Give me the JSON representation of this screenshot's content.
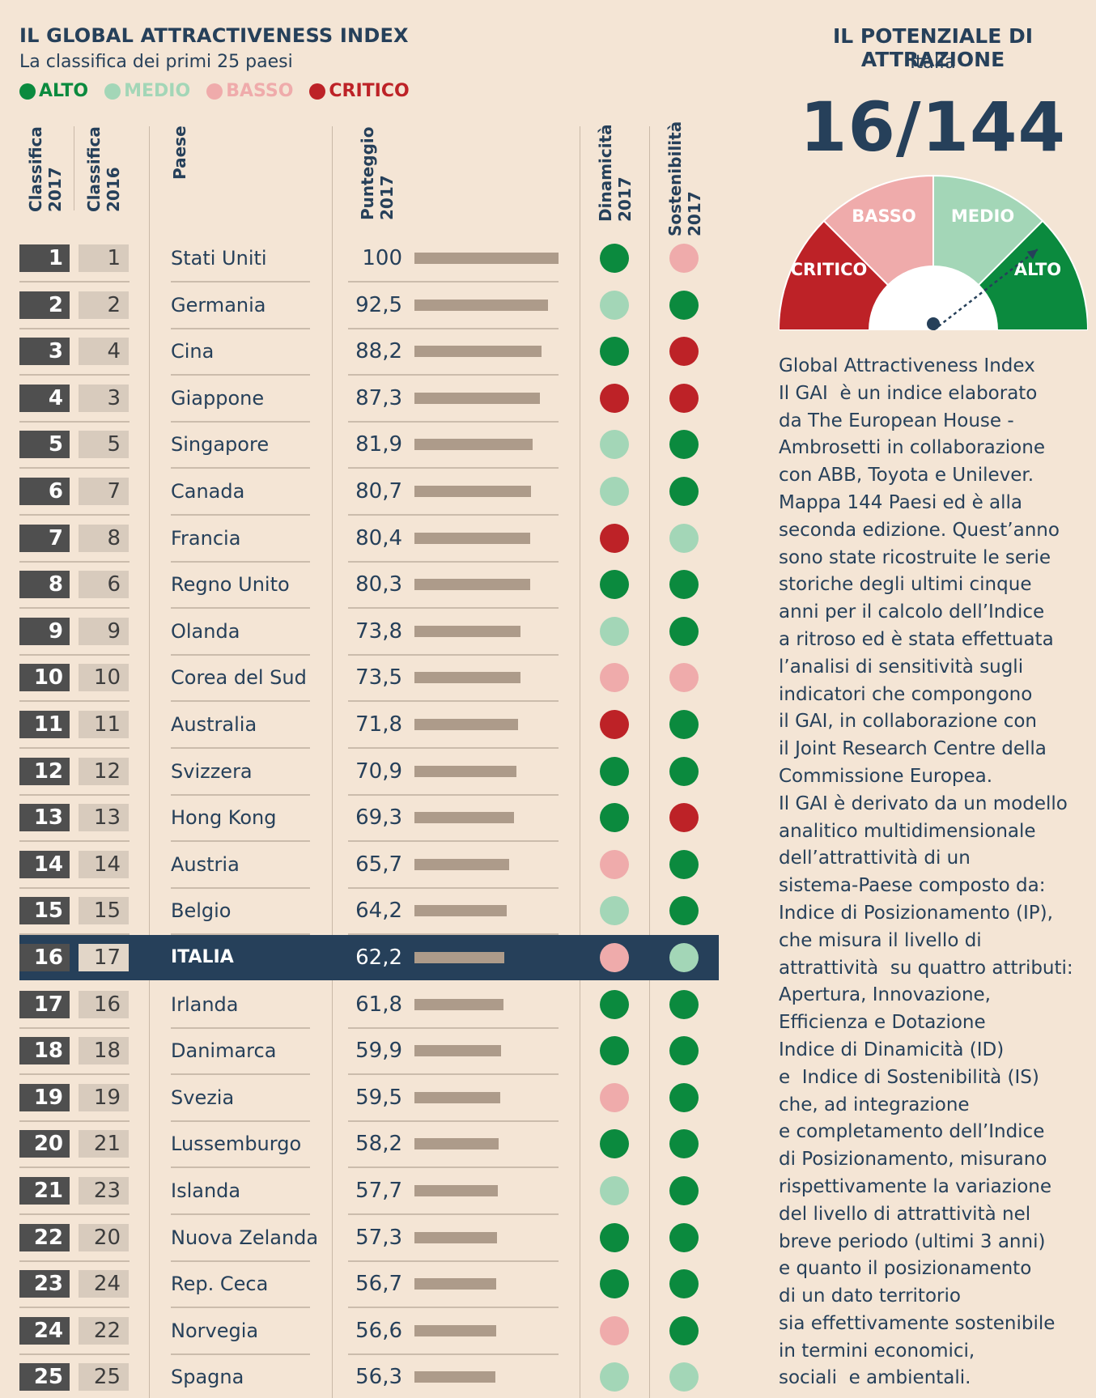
{
  "header": {
    "title": "IL GLOBAL ATTRACTIVENESS INDEX",
    "subtitle": "La classifica dei primi 25 paesi"
  },
  "legend": [
    {
      "label": "ALTO",
      "color": "#0b8a3e"
    },
    {
      "label": "MEDIO",
      "color": "#a3d6b7"
    },
    {
      "label": "BASSO",
      "color": "#efabab"
    },
    {
      "label": "CRITICO",
      "color": "#bd2227"
    }
  ],
  "columns": {
    "rank2017": "Classifica\n2017",
    "rank2016": "Classifica\n2016",
    "country": "Paese",
    "score": "Punteggio\n2017",
    "dynamics": "Dinamicità\n2017",
    "sustainability": "Sostenibilità\n2017"
  },
  "chart_data": {
    "type": "table",
    "title": "IL GLOBAL ATTRACTIVENESS INDEX",
    "subtitle": "La classifica dei primi 25 paesi",
    "bar_max": 100,
    "highlight_rank": 16,
    "rows": [
      {
        "rank2017": 1,
        "rank2016": 1,
        "country": "Stati Uniti",
        "score": "100",
        "value": 100,
        "dyn": "ALTO",
        "sus": "BASSO"
      },
      {
        "rank2017": 2,
        "rank2016": 2,
        "country": "Germania",
        "score": "92,5",
        "value": 92.5,
        "dyn": "MEDIO",
        "sus": "ALTO"
      },
      {
        "rank2017": 3,
        "rank2016": 4,
        "country": "Cina",
        "score": "88,2",
        "value": 88.2,
        "dyn": "ALTO",
        "sus": "CRITICO"
      },
      {
        "rank2017": 4,
        "rank2016": 3,
        "country": "Giappone",
        "score": "87,3",
        "value": 87.3,
        "dyn": "CRITICO",
        "sus": "CRITICO"
      },
      {
        "rank2017": 5,
        "rank2016": 5,
        "country": "Singapore",
        "score": "81,9",
        "value": 81.9,
        "dyn": "MEDIO",
        "sus": "ALTO"
      },
      {
        "rank2017": 6,
        "rank2016": 7,
        "country": "Canada",
        "score": "80,7",
        "value": 80.7,
        "dyn": "MEDIO",
        "sus": "ALTO"
      },
      {
        "rank2017": 7,
        "rank2016": 8,
        "country": "Francia",
        "score": "80,4",
        "value": 80.4,
        "dyn": "CRITICO",
        "sus": "MEDIO"
      },
      {
        "rank2017": 8,
        "rank2016": 6,
        "country": "Regno Unito",
        "score": "80,3",
        "value": 80.3,
        "dyn": "ALTO",
        "sus": "ALTO"
      },
      {
        "rank2017": 9,
        "rank2016": 9,
        "country": "Olanda",
        "score": "73,8",
        "value": 73.8,
        "dyn": "MEDIO",
        "sus": "ALTO"
      },
      {
        "rank2017": 10,
        "rank2016": 10,
        "country": "Corea del Sud",
        "score": "73,5",
        "value": 73.5,
        "dyn": "BASSO",
        "sus": "BASSO"
      },
      {
        "rank2017": 11,
        "rank2016": 11,
        "country": "Australia",
        "score": "71,8",
        "value": 71.8,
        "dyn": "CRITICO",
        "sus": "ALTO"
      },
      {
        "rank2017": 12,
        "rank2016": 12,
        "country": "Svizzera",
        "score": "70,9",
        "value": 70.9,
        "dyn": "ALTO",
        "sus": "ALTO"
      },
      {
        "rank2017": 13,
        "rank2016": 13,
        "country": "Hong Kong",
        "score": "69,3",
        "value": 69.3,
        "dyn": "ALTO",
        "sus": "CRITICO"
      },
      {
        "rank2017": 14,
        "rank2016": 14,
        "country": "Austria",
        "score": "65,7",
        "value": 65.7,
        "dyn": "BASSO",
        "sus": "ALTO"
      },
      {
        "rank2017": 15,
        "rank2016": 15,
        "country": "Belgio",
        "score": "64,2",
        "value": 64.2,
        "dyn": "MEDIO",
        "sus": "ALTO"
      },
      {
        "rank2017": 16,
        "rank2016": 17,
        "country": "ITALIA",
        "score": "62,2",
        "value": 62.2,
        "dyn": "BASSO",
        "sus": "MEDIO"
      },
      {
        "rank2017": 17,
        "rank2016": 16,
        "country": "Irlanda",
        "score": "61,8",
        "value": 61.8,
        "dyn": "ALTO",
        "sus": "ALTO"
      },
      {
        "rank2017": 18,
        "rank2016": 18,
        "country": "Danimarca",
        "score": "59,9",
        "value": 59.9,
        "dyn": "ALTO",
        "sus": "ALTO"
      },
      {
        "rank2017": 19,
        "rank2016": 19,
        "country": "Svezia",
        "score": "59,5",
        "value": 59.5,
        "dyn": "BASSO",
        "sus": "ALTO"
      },
      {
        "rank2017": 20,
        "rank2016": 21,
        "country": "Lussemburgo",
        "score": "58,2",
        "value": 58.2,
        "dyn": "ALTO",
        "sus": "ALTO"
      },
      {
        "rank2017": 21,
        "rank2016": 23,
        "country": "Islanda",
        "score": "57,7",
        "value": 57.7,
        "dyn": "MEDIO",
        "sus": "ALTO"
      },
      {
        "rank2017": 22,
        "rank2016": 20,
        "country": "Nuova Zelanda",
        "score": "57,3",
        "value": 57.3,
        "dyn": "ALTO",
        "sus": "ALTO"
      },
      {
        "rank2017": 23,
        "rank2016": 24,
        "country": "Rep. Ceca",
        "score": "56,7",
        "value": 56.7,
        "dyn": "ALTO",
        "sus": "ALTO"
      },
      {
        "rank2017": 24,
        "rank2016": 22,
        "country": "Norvegia",
        "score": "56,6",
        "value": 56.6,
        "dyn": "BASSO",
        "sus": "ALTO"
      },
      {
        "rank2017": 25,
        "rank2016": 25,
        "country": "Spagna",
        "score": "56,3",
        "value": 56.3,
        "dyn": "MEDIO",
        "sus": "MEDIO"
      }
    ]
  },
  "side": {
    "title": "IL POTENZIALE DI ATTRAZIONE",
    "country": "Italia",
    "position": "16/144",
    "gauge_labels": [
      "CRITICO",
      "BASSO",
      "MEDIO",
      "ALTO"
    ],
    "gauge_colors": [
      "#bd2227",
      "#efabab",
      "#a3d6b7",
      "#0b8a3e"
    ],
    "gauge_pointer_fraction": 0.79,
    "description": "Global Attractiveness Index\nIl GAI  è un indice elaborato\nda The European House -\nAmbrosetti in collaborazione\ncon ABB, Toyota e Unilever.\nMappa 144 Paesi ed è alla\nseconda edizione. Quest’anno\nsono state ricostruite le serie\nstoriche degli ultimi cinque\nanni per il calcolo dell’Indice\na ritroso ed è stata effettuata\nl’analisi di sensitività sugli\nindicatori che compongono\nil GAI, in collaborazione con\nil Joint Research Centre della\nCommissione Europea.\nIl GAI è derivato da un modello\nanalitico multidimensionale\ndell’attrattività di un\nsistema-Paese composto da:\nIndice di Posizionamento (IP),\nche misura il livello di\nattrattività  su quattro attributi:\nApertura, Innovazione,\nEfficienza e Dotazione\nIndice di Dinamicità (ID)\ne  Indice di Sostenibilità (IS)\nche, ad integrazione\ne completamento dell’Indice\ndi Posizionamento, misurano\nrispettivamente la variazione\ndel livello di attrattività nel\nbreve periodo (ultimi 3 anni)\ne quanto il posizionamento\ndi un dato territorio\nsia effettivamente sostenibile\nin termini economici,\nsociali  e ambientali."
  }
}
